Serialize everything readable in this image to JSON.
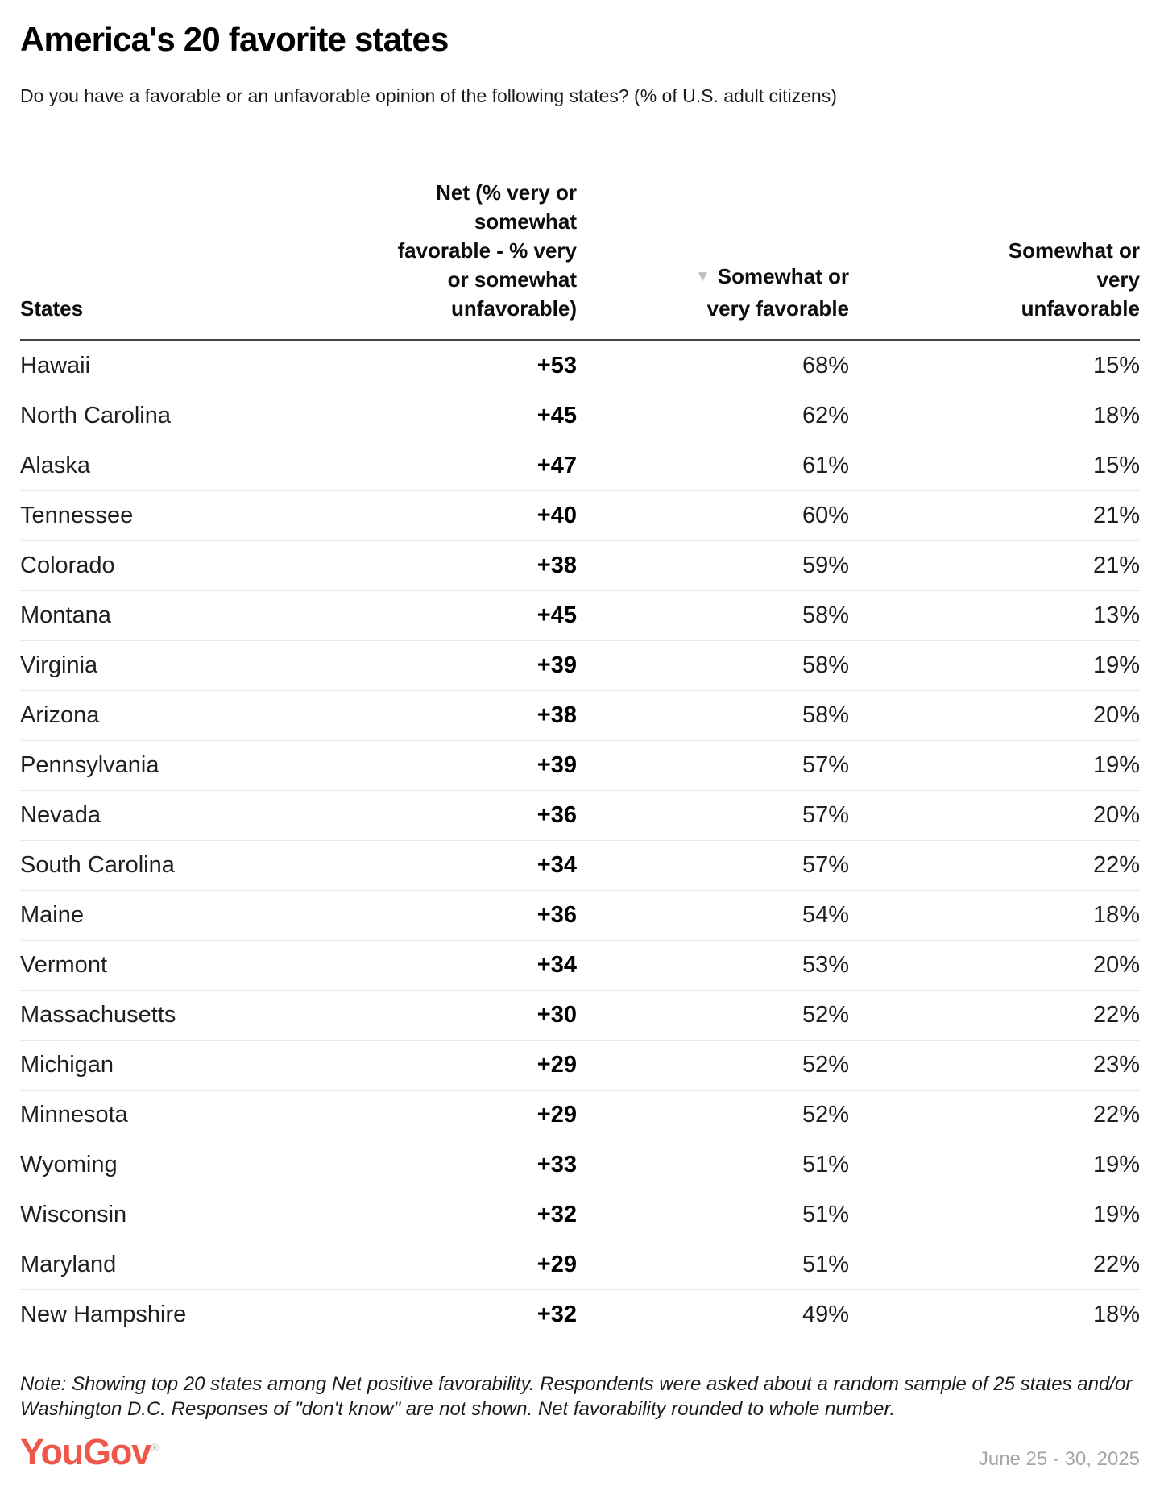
{
  "header": {
    "title": "America's 20 favorite states",
    "subtitle": "Do you have a favorable or an unfavorable opinion of the following states? (% of U.S. adult citizens)"
  },
  "table": {
    "columns": {
      "states": "States",
      "net": "Net (% very or\nsomewhat\nfavorable - % very\nor somewhat\nunfavorable)",
      "favorable": "Somewhat or\nvery favorable",
      "unfavorable": "Somewhat or\nvery\nunfavorable"
    },
    "sort_icon": "▼",
    "rows": [
      {
        "state": "Hawaii",
        "net": "+53",
        "favorable": "68%",
        "unfavorable": "15%"
      },
      {
        "state": "North Carolina",
        "net": "+45",
        "favorable": "62%",
        "unfavorable": "18%"
      },
      {
        "state": "Alaska",
        "net": "+47",
        "favorable": "61%",
        "unfavorable": "15%"
      },
      {
        "state": "Tennessee",
        "net": "+40",
        "favorable": "60%",
        "unfavorable": "21%"
      },
      {
        "state": "Colorado",
        "net": "+38",
        "favorable": "59%",
        "unfavorable": "21%"
      },
      {
        "state": "Montana",
        "net": "+45",
        "favorable": "58%",
        "unfavorable": "13%"
      },
      {
        "state": "Virginia",
        "net": "+39",
        "favorable": "58%",
        "unfavorable": "19%"
      },
      {
        "state": "Arizona",
        "net": "+38",
        "favorable": "58%",
        "unfavorable": "20%"
      },
      {
        "state": "Pennsylvania",
        "net": "+39",
        "favorable": "57%",
        "unfavorable": "19%"
      },
      {
        "state": "Nevada",
        "net": "+36",
        "favorable": "57%",
        "unfavorable": "20%"
      },
      {
        "state": "South Carolina",
        "net": "+34",
        "favorable": "57%",
        "unfavorable": "22%"
      },
      {
        "state": "Maine",
        "net": "+36",
        "favorable": "54%",
        "unfavorable": "18%"
      },
      {
        "state": "Vermont",
        "net": "+34",
        "favorable": "53%",
        "unfavorable": "20%"
      },
      {
        "state": "Massachusetts",
        "net": "+30",
        "favorable": "52%",
        "unfavorable": "22%"
      },
      {
        "state": "Michigan",
        "net": "+29",
        "favorable": "52%",
        "unfavorable": "23%"
      },
      {
        "state": "Minnesota",
        "net": "+29",
        "favorable": "52%",
        "unfavorable": "22%"
      },
      {
        "state": "Wyoming",
        "net": "+33",
        "favorable": "51%",
        "unfavorable": "19%"
      },
      {
        "state": "Wisconsin",
        "net": "+32",
        "favorable": "51%",
        "unfavorable": "19%"
      },
      {
        "state": "Maryland",
        "net": "+29",
        "favorable": "51%",
        "unfavorable": "22%"
      },
      {
        "state": "New Hampshire",
        "net": "+32",
        "favorable": "49%",
        "unfavorable": "18%"
      }
    ]
  },
  "footer": {
    "note": "Note: Showing top 20 states among Net positive favorability. Respondents were asked about a random sample of 25 states and/or Washington D.C. Responses of \"don't know\" are not shown. Net favorability rounded to whole number.",
    "logo": "YouGov",
    "registered_mark": "®",
    "date_range": "June 25 - 30, 2025"
  },
  "colors": {
    "brand_red": "#f0564a",
    "header_rule": "#424242",
    "row_rule": "#e9e9e9",
    "muted_gray": "#a6a6a6",
    "sort_triangle": "#c0c0c0"
  },
  "chart_data": {
    "type": "table",
    "title": "America's 20 favorite states",
    "subtitle": "Do you have a favorable or an unfavorable opinion of the following states? (% of U.S. adult citizens)",
    "columns": [
      "States",
      "Net (% very or somewhat favorable - % very or somewhat unfavorable)",
      "Somewhat or very favorable",
      "Somewhat or very unfavorable"
    ],
    "sort": {
      "column": "Somewhat or very favorable",
      "direction": "descending"
    },
    "states": [
      "Hawaii",
      "North Carolina",
      "Alaska",
      "Tennessee",
      "Colorado",
      "Montana",
      "Virginia",
      "Arizona",
      "Pennsylvania",
      "Nevada",
      "South Carolina",
      "Maine",
      "Vermont",
      "Massachusetts",
      "Michigan",
      "Minnesota",
      "Wyoming",
      "Wisconsin",
      "Maryland",
      "New Hampshire"
    ],
    "series": [
      {
        "name": "Net favorability",
        "values": [
          53,
          45,
          47,
          40,
          38,
          45,
          39,
          38,
          39,
          36,
          34,
          36,
          34,
          30,
          29,
          29,
          33,
          32,
          29,
          32
        ]
      },
      {
        "name": "Somewhat or very favorable (%)",
        "values": [
          68,
          62,
          61,
          60,
          59,
          58,
          58,
          58,
          57,
          57,
          57,
          54,
          53,
          52,
          52,
          52,
          51,
          51,
          51,
          49
        ]
      },
      {
        "name": "Somewhat or very unfavorable (%)",
        "values": [
          15,
          18,
          15,
          21,
          21,
          13,
          19,
          20,
          19,
          20,
          22,
          18,
          20,
          22,
          23,
          22,
          19,
          19,
          22,
          18
        ]
      }
    ],
    "note": "Note: Showing top 20 states among Net positive favorability. Respondents were asked about a random sample of 25 states and/or Washington D.C. Responses of \"don't know\" are not shown. Net favorability rounded to whole number.",
    "source": "YouGov",
    "date_range": "June 25 - 30, 2025"
  }
}
